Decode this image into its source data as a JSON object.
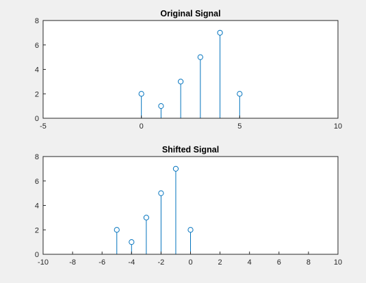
{
  "figure": {
    "background": "#f0f0f0"
  },
  "chart_data": [
    {
      "type": "stem",
      "title": "Original Signal",
      "xlabel": "",
      "ylabel": "",
      "xlim": [
        -5,
        10
      ],
      "ylim": [
        0,
        8
      ],
      "xticks": [
        -5,
        0,
        5,
        10
      ],
      "yticks": [
        0,
        2,
        4,
        6,
        8
      ],
      "grid": false,
      "color": "#0072bd",
      "x": [
        0,
        1,
        2,
        3,
        4,
        5
      ],
      "y": [
        2,
        1,
        3,
        5,
        7,
        2
      ]
    },
    {
      "type": "stem",
      "title": "Shifted Signal",
      "xlabel": "",
      "ylabel": "",
      "xlim": [
        -10,
        10
      ],
      "ylim": [
        0,
        8
      ],
      "xticks": [
        -10,
        -8,
        -6,
        -4,
        -2,
        0,
        2,
        4,
        6,
        8,
        10
      ],
      "yticks": [
        0,
        2,
        4,
        6,
        8
      ],
      "grid": false,
      "color": "#0072bd",
      "x": [
        -5,
        -4,
        -3,
        -2,
        -1,
        0
      ],
      "y": [
        2,
        1,
        3,
        5,
        7,
        2
      ]
    }
  ]
}
